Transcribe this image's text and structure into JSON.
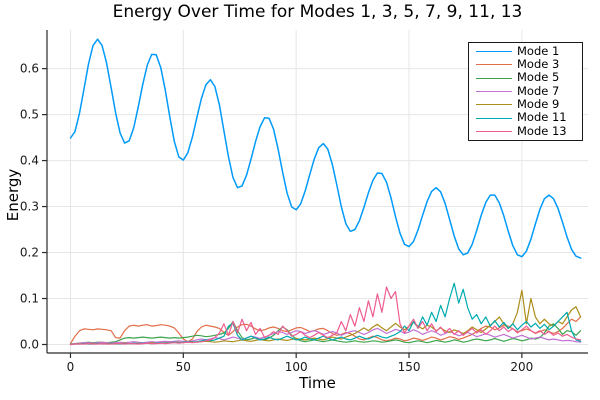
{
  "chart_data": {
    "type": "line",
    "title": "Energy Over Time for Modes 1, 3, 5, 7, 9, 11, 13",
    "xlabel": "Time",
    "ylabel": "Energy",
    "xlim": [
      -10.4,
      229.3
    ],
    "ylim": [
      -0.0185,
      0.684
    ],
    "xticks": [
      0,
      50,
      100,
      150,
      200
    ],
    "xtick_labels": [
      "0",
      "50",
      "100",
      "150",
      "200"
    ],
    "yticks": [
      0.0,
      0.1,
      0.2,
      0.3,
      0.4,
      0.5,
      0.6
    ],
    "ytick_labels": [
      "0.0",
      "0.1",
      "0.2",
      "0.3",
      "0.4",
      "0.5",
      "0.6"
    ],
    "grid": true,
    "legend_position": "top-right",
    "grid_color": "#e6e6e6",
    "axis_color": "#2a2a2a",
    "tick_label_color": "#1a1a1a",
    "x": [
      0,
      2,
      4,
      6,
      8,
      10,
      12,
      14,
      16,
      18,
      20,
      22,
      24,
      26,
      28,
      30,
      32,
      34,
      36,
      38,
      40,
      42,
      44,
      46,
      48,
      50,
      52,
      54,
      56,
      58,
      60,
      62,
      64,
      66,
      68,
      70,
      72,
      74,
      76,
      78,
      80,
      82,
      84,
      86,
      88,
      90,
      92,
      94,
      96,
      98,
      100,
      102,
      104,
      106,
      108,
      110,
      112,
      114,
      116,
      118,
      120,
      122,
      124,
      126,
      128,
      130,
      132,
      134,
      136,
      138,
      140,
      142,
      144,
      146,
      148,
      150,
      152,
      154,
      156,
      158,
      160,
      162,
      164,
      166,
      168,
      170,
      172,
      174,
      176,
      178,
      180,
      182,
      184,
      186,
      188,
      190,
      192,
      194,
      196,
      198,
      200,
      202,
      204,
      206,
      208,
      210,
      212,
      214,
      216,
      218,
      220,
      222,
      224,
      226
    ],
    "series": [
      {
        "name": "Mode 1",
        "color": "#009af9",
        "stroke_width": 1.5,
        "values": [
          0.449,
          0.463,
          0.503,
          0.556,
          0.61,
          0.65,
          0.664,
          0.65,
          0.612,
          0.559,
          0.504,
          0.46,
          0.438,
          0.443,
          0.471,
          0.516,
          0.565,
          0.607,
          0.631,
          0.63,
          0.602,
          0.553,
          0.495,
          0.442,
          0.408,
          0.401,
          0.417,
          0.451,
          0.494,
          0.535,
          0.565,
          0.576,
          0.561,
          0.521,
          0.465,
          0.408,
          0.363,
          0.341,
          0.345,
          0.368,
          0.403,
          0.441,
          0.474,
          0.493,
          0.492,
          0.468,
          0.425,
          0.375,
          0.329,
          0.299,
          0.293,
          0.306,
          0.334,
          0.369,
          0.403,
          0.428,
          0.437,
          0.425,
          0.392,
          0.347,
          0.3,
          0.263,
          0.246,
          0.25,
          0.269,
          0.298,
          0.33,
          0.357,
          0.373,
          0.372,
          0.353,
          0.319,
          0.278,
          0.242,
          0.218,
          0.213,
          0.224,
          0.249,
          0.281,
          0.311,
          0.333,
          0.341,
          0.332,
          0.307,
          0.272,
          0.236,
          0.208,
          0.195,
          0.199,
          0.218,
          0.248,
          0.281,
          0.309,
          0.325,
          0.325,
          0.308,
          0.28,
          0.246,
          0.215,
          0.195,
          0.191,
          0.203,
          0.229,
          0.262,
          0.294,
          0.317,
          0.325,
          0.317,
          0.296,
          0.266,
          0.234,
          0.207,
          0.192,
          0.188
        ]
      },
      {
        "name": "Mode 3",
        "color": "#e26e47",
        "stroke_width": 1.2,
        "values": [
          0.002,
          0.018,
          0.03,
          0.034,
          0.033,
          0.032,
          0.034,
          0.033,
          0.032,
          0.03,
          0.015,
          0.014,
          0.03,
          0.04,
          0.042,
          0.04,
          0.042,
          0.043,
          0.04,
          0.041,
          0.043,
          0.042,
          0.04,
          0.036,
          0.025,
          0.012,
          0.006,
          0.012,
          0.028,
          0.038,
          0.042,
          0.04,
          0.038,
          0.035,
          0.026,
          0.02,
          0.028,
          0.038,
          0.043,
          0.044,
          0.04,
          0.034,
          0.03,
          0.032,
          0.036,
          0.038,
          0.035,
          0.03,
          0.028,
          0.032,
          0.036,
          0.037,
          0.033,
          0.028,
          0.03,
          0.034,
          0.035,
          0.03,
          0.024,
          0.02,
          0.022,
          0.026,
          0.024,
          0.018,
          0.012,
          0.01,
          0.014,
          0.018,
          0.015,
          0.01,
          0.008,
          0.01,
          0.014,
          0.012,
          0.008,
          0.01,
          0.014,
          0.012,
          0.009,
          0.012,
          0.016,
          0.014,
          0.01,
          0.013,
          0.017,
          0.015,
          0.011,
          0.014,
          0.018,
          0.022,
          0.028,
          0.035,
          0.04,
          0.038,
          0.032,
          0.036,
          0.042,
          0.04,
          0.034,
          0.028,
          0.03,
          0.034,
          0.03,
          0.024,
          0.028,
          0.032,
          0.028,
          0.024,
          0.028,
          0.035,
          0.045,
          0.055,
          0.05,
          0.06
        ]
      },
      {
        "name": "Mode 5",
        "color": "#3da44d",
        "stroke_width": 1.2,
        "values": [
          0.001,
          0.002,
          0.003,
          0.004,
          0.005,
          0.004,
          0.005,
          0.005,
          0.004,
          0.005,
          0.006,
          0.01,
          0.014,
          0.015,
          0.014,
          0.015,
          0.016,
          0.015,
          0.014,
          0.015,
          0.016,
          0.015,
          0.014,
          0.015,
          0.014,
          0.015,
          0.016,
          0.018,
          0.02,
          0.019,
          0.017,
          0.018,
          0.02,
          0.022,
          0.025,
          0.035,
          0.05,
          0.03,
          0.015,
          0.01,
          0.012,
          0.015,
          0.012,
          0.01,
          0.014,
          0.02,
          0.03,
          0.038,
          0.032,
          0.02,
          0.012,
          0.008,
          0.006,
          0.008,
          0.01,
          0.008,
          0.006,
          0.008,
          0.01,
          0.008,
          0.006,
          0.005,
          0.006,
          0.008,
          0.006,
          0.005,
          0.006,
          0.008,
          0.007,
          0.005,
          0.006,
          0.008,
          0.01,
          0.008,
          0.005,
          0.004,
          0.006,
          0.008,
          0.006,
          0.004,
          0.006,
          0.009,
          0.007,
          0.005,
          0.007,
          0.01,
          0.008,
          0.005,
          0.007,
          0.01,
          0.012,
          0.01,
          0.008,
          0.01,
          0.013,
          0.01,
          0.007,
          0.01,
          0.013,
          0.011,
          0.008,
          0.01,
          0.014,
          0.012,
          0.015,
          0.025,
          0.04,
          0.045,
          0.035,
          0.022,
          0.03,
          0.028,
          0.02,
          0.03
        ]
      },
      {
        "name": "Mode 7",
        "color": "#c271d2",
        "stroke_width": 1.2,
        "values": [
          0.0,
          0.002,
          0.003,
          0.004,
          0.004,
          0.003,
          0.004,
          0.005,
          0.004,
          0.003,
          0.004,
          0.005,
          0.004,
          0.005,
          0.006,
          0.005,
          0.004,
          0.005,
          0.006,
          0.005,
          0.006,
          0.007,
          0.006,
          0.007,
          0.008,
          0.007,
          0.006,
          0.008,
          0.01,
          0.012,
          0.01,
          0.012,
          0.015,
          0.013,
          0.01,
          0.013,
          0.016,
          0.014,
          0.011,
          0.014,
          0.018,
          0.016,
          0.013,
          0.016,
          0.02,
          0.024,
          0.028,
          0.026,
          0.022,
          0.026,
          0.03,
          0.028,
          0.024,
          0.027,
          0.03,
          0.027,
          0.022,
          0.025,
          0.028,
          0.025,
          0.02,
          0.024,
          0.028,
          0.03,
          0.026,
          0.022,
          0.026,
          0.032,
          0.035,
          0.03,
          0.024,
          0.028,
          0.033,
          0.03,
          0.024,
          0.027,
          0.032,
          0.028,
          0.022,
          0.026,
          0.03,
          0.026,
          0.02,
          0.024,
          0.028,
          0.024,
          0.019,
          0.022,
          0.026,
          0.022,
          0.017,
          0.02,
          0.024,
          0.02,
          0.016,
          0.019,
          0.022,
          0.018,
          0.014,
          0.017,
          0.02,
          0.016,
          0.012,
          0.014,
          0.016,
          0.013,
          0.01,
          0.012,
          0.01,
          0.008,
          0.009,
          0.008,
          0.006,
          0.005
        ]
      },
      {
        "name": "Mode 9",
        "color": "#ac8d18",
        "stroke_width": 1.2,
        "values": [
          0.0,
          0.001,
          0.002,
          0.002,
          0.001,
          0.002,
          0.002,
          0.001,
          0.002,
          0.002,
          0.001,
          0.002,
          0.003,
          0.002,
          0.002,
          0.003,
          0.002,
          0.003,
          0.004,
          0.003,
          0.003,
          0.004,
          0.004,
          0.005,
          0.005,
          0.004,
          0.005,
          0.006,
          0.005,
          0.006,
          0.007,
          0.006,
          0.005,
          0.006,
          0.008,
          0.007,
          0.006,
          0.008,
          0.01,
          0.008,
          0.007,
          0.009,
          0.011,
          0.009,
          0.008,
          0.01,
          0.012,
          0.01,
          0.009,
          0.011,
          0.013,
          0.011,
          0.01,
          0.012,
          0.014,
          0.012,
          0.01,
          0.013,
          0.016,
          0.014,
          0.012,
          0.016,
          0.02,
          0.024,
          0.03,
          0.036,
          0.03,
          0.038,
          0.044,
          0.036,
          0.03,
          0.038,
          0.046,
          0.038,
          0.032,
          0.04,
          0.048,
          0.04,
          0.034,
          0.042,
          0.038,
          0.03,
          0.036,
          0.03,
          0.026,
          0.032,
          0.028,
          0.024,
          0.03,
          0.038,
          0.032,
          0.026,
          0.034,
          0.042,
          0.05,
          0.06,
          0.045,
          0.035,
          0.045,
          0.07,
          0.118,
          0.045,
          0.1,
          0.06,
          0.045,
          0.055,
          0.045,
          0.04,
          0.05,
          0.045,
          0.06,
          0.075,
          0.082,
          0.06
        ]
      },
      {
        "name": "Mode 11",
        "color": "#00aaae",
        "stroke_width": 1.2,
        "values": [
          0.0,
          0.001,
          0.001,
          0.002,
          0.001,
          0.001,
          0.002,
          0.002,
          0.001,
          0.002,
          0.002,
          0.001,
          0.002,
          0.002,
          0.003,
          0.002,
          0.003,
          0.003,
          0.002,
          0.003,
          0.004,
          0.003,
          0.004,
          0.005,
          0.004,
          0.005,
          0.006,
          0.005,
          0.006,
          0.008,
          0.01,
          0.008,
          0.01,
          0.014,
          0.018,
          0.04,
          0.046,
          0.02,
          0.01,
          0.014,
          0.018,
          0.014,
          0.01,
          0.012,
          0.016,
          0.012,
          0.01,
          0.014,
          0.018,
          0.014,
          0.01,
          0.012,
          0.016,
          0.012,
          0.01,
          0.014,
          0.018,
          0.014,
          0.01,
          0.013,
          0.016,
          0.012,
          0.01,
          0.014,
          0.018,
          0.014,
          0.012,
          0.016,
          0.02,
          0.016,
          0.014,
          0.018,
          0.022,
          0.028,
          0.04,
          0.03,
          0.05,
          0.036,
          0.06,
          0.042,
          0.07,
          0.05,
          0.085,
          0.06,
          0.1,
          0.133,
          0.09,
          0.12,
          0.08,
          0.055,
          0.065,
          0.045,
          0.06,
          0.04,
          0.052,
          0.038,
          0.048,
          0.035,
          0.045,
          0.032,
          0.042,
          0.05,
          0.038,
          0.046,
          0.035,
          0.044,
          0.032,
          0.04,
          0.05,
          0.06,
          0.07,
          0.03,
          0.01,
          0.007
        ]
      },
      {
        "name": "Mode 13",
        "color": "#ed5d92",
        "stroke_width": 1.2,
        "values": [
          0.0,
          0.001,
          0.001,
          0.001,
          0.002,
          0.001,
          0.001,
          0.002,
          0.001,
          0.001,
          0.002,
          0.002,
          0.001,
          0.002,
          0.002,
          0.001,
          0.002,
          0.003,
          0.002,
          0.002,
          0.003,
          0.002,
          0.003,
          0.004,
          0.003,
          0.004,
          0.005,
          0.004,
          0.005,
          0.006,
          0.008,
          0.01,
          0.015,
          0.025,
          0.045,
          0.02,
          0.05,
          0.025,
          0.055,
          0.03,
          0.048,
          0.022,
          0.035,
          0.015,
          0.02,
          0.028,
          0.022,
          0.04,
          0.03,
          0.018,
          0.022,
          0.028,
          0.02,
          0.015,
          0.02,
          0.026,
          0.02,
          0.015,
          0.02,
          0.025,
          0.05,
          0.03,
          0.065,
          0.04,
          0.08,
          0.05,
          0.095,
          0.06,
          0.11,
          0.07,
          0.125,
          0.1,
          0.115,
          0.045,
          0.025,
          0.04,
          0.055,
          0.035,
          0.05,
          0.03,
          0.045,
          0.028,
          0.038,
          0.025,
          0.035,
          0.022,
          0.03,
          0.02,
          0.028,
          0.035,
          0.025,
          0.032,
          0.022,
          0.03,
          0.04,
          0.03,
          0.038,
          0.028,
          0.035,
          0.025,
          0.032,
          0.04,
          0.03,
          0.025,
          0.03,
          0.022,
          0.028,
          0.02,
          0.025,
          0.018,
          0.022,
          0.016,
          0.012,
          0.01
        ]
      }
    ]
  }
}
